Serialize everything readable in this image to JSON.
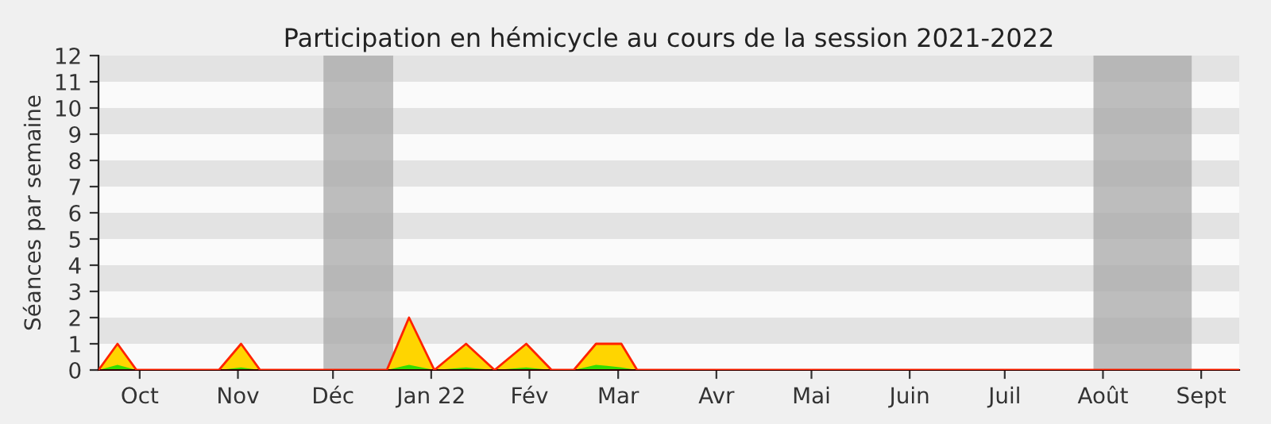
{
  "chart_data": {
    "type": "area",
    "title": "Participation en hémicycle au cours de la session 2021-2022",
    "ylabel": "Séances par semaine",
    "x": [
      "2021-09-18",
      "2021-09-24",
      "2021-09-30",
      "2021-10-26",
      "2021-11-02",
      "2021-11-08",
      "2021-12-18",
      "2021-12-25",
      "2022-01-02",
      "2022-01-12",
      "2022-01-21",
      "2022-01-31",
      "2022-02-08",
      "2022-02-15",
      "2022-02-22",
      "2022-03-02",
      "2022-03-07",
      "2022-09-13"
    ],
    "series": [
      {
        "color": "#ffd500",
        "values": [
          0,
          1,
          0,
          0,
          1,
          0,
          0,
          2,
          0,
          1,
          0,
          1,
          0,
          0,
          1,
          1,
          0,
          0
        ]
      },
      {
        "color": "#33dd00",
        "values": [
          0,
          0.2,
          0,
          0,
          0.1,
          0,
          0,
          0.2,
          0,
          0.1,
          0,
          0.1,
          0,
          0,
          0.2,
          0.1,
          0,
          0
        ]
      }
    ],
    "xlim": [
      "2021-09-18",
      "2022-09-13"
    ],
    "ylim": [
      0,
      12
    ],
    "yticks": [
      0,
      1,
      2,
      3,
      4,
      5,
      6,
      7,
      8,
      9,
      10,
      11,
      12
    ],
    "xticks": [
      {
        "value": "2021-10-01",
        "label": "Oct"
      },
      {
        "value": "2021-11-01",
        "label": "Nov"
      },
      {
        "value": "2021-12-01",
        "label": "Déc"
      },
      {
        "value": "2022-01-01",
        "label": "Jan 22"
      },
      {
        "value": "2022-02-01",
        "label": "Fév"
      },
      {
        "value": "2022-03-01",
        "label": "Mar"
      },
      {
        "value": "2022-04-01",
        "label": "Avr"
      },
      {
        "value": "2022-05-01",
        "label": "Mai"
      },
      {
        "value": "2022-06-01",
        "label": "Juin"
      },
      {
        "value": "2022-07-01",
        "label": "Juil"
      },
      {
        "value": "2022-08-01",
        "label": "Août"
      },
      {
        "value": "2022-09-01",
        "label": "Sept"
      }
    ],
    "bands": [
      {
        "axis": "x",
        "from": "2021-11-28",
        "to": "2021-12-20",
        "color": "#a8a8a8"
      },
      {
        "axis": "x",
        "from": "2022-07-29",
        "to": "2022-08-29",
        "color": "#a8a8a8"
      }
    ],
    "legend": false
  }
}
